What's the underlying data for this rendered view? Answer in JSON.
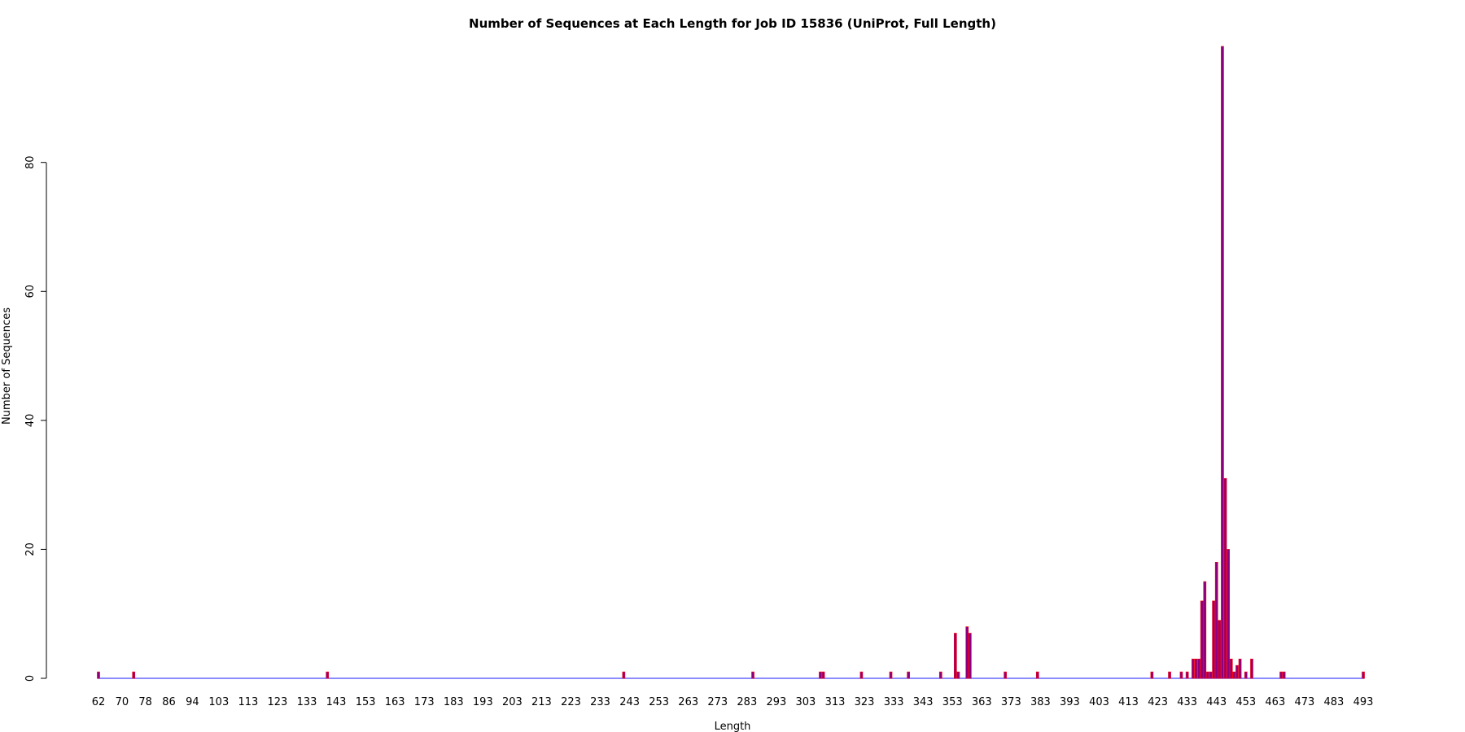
{
  "chart_data": {
    "type": "bar",
    "title": "Number of Sequences at Each Length for Job ID 15836 (UniProt, Full Length)",
    "xlabel": "Length",
    "ylabel": "Number of Sequences",
    "xlim": [
      62,
      494
    ],
    "ylim": [
      0,
      98
    ],
    "y_ticks": [
      0,
      20,
      40,
      60,
      80
    ],
    "x_tick_labels": [
      62,
      70,
      78,
      86,
      94,
      103,
      113,
      123,
      133,
      143,
      153,
      163,
      173,
      183,
      193,
      203,
      213,
      223,
      233,
      243,
      253,
      263,
      273,
      283,
      293,
      303,
      313,
      323,
      333,
      343,
      353,
      363,
      373,
      383,
      393,
      403,
      413,
      423,
      433,
      443,
      453,
      463,
      473,
      483,
      493
    ],
    "grid": false,
    "legend": "none",
    "bar_fill": "#8b0080",
    "bar_edge": "#ff0000",
    "baseline_color": "#6666ff",
    "points": [
      {
        "x": 62,
        "y": 1
      },
      {
        "x": 74,
        "y": 1
      },
      {
        "x": 140,
        "y": 1
      },
      {
        "x": 241,
        "y": 1
      },
      {
        "x": 285,
        "y": 1
      },
      {
        "x": 308,
        "y": 1
      },
      {
        "x": 309,
        "y": 1
      },
      {
        "x": 322,
        "y": 1
      },
      {
        "x": 332,
        "y": 1
      },
      {
        "x": 338,
        "y": 1
      },
      {
        "x": 349,
        "y": 1
      },
      {
        "x": 354,
        "y": 7
      },
      {
        "x": 355,
        "y": 1
      },
      {
        "x": 358,
        "y": 8
      },
      {
        "x": 359,
        "y": 7
      },
      {
        "x": 371,
        "y": 1
      },
      {
        "x": 382,
        "y": 1
      },
      {
        "x": 421,
        "y": 1
      },
      {
        "x": 427,
        "y": 1
      },
      {
        "x": 431,
        "y": 1
      },
      {
        "x": 433,
        "y": 1
      },
      {
        "x": 435,
        "y": 3
      },
      {
        "x": 436,
        "y": 3
      },
      {
        "x": 437,
        "y": 3
      },
      {
        "x": 438,
        "y": 12
      },
      {
        "x": 439,
        "y": 15
      },
      {
        "x": 440,
        "y": 1
      },
      {
        "x": 441,
        "y": 1
      },
      {
        "x": 442,
        "y": 12
      },
      {
        "x": 443,
        "y": 18
      },
      {
        "x": 444,
        "y": 9
      },
      {
        "x": 445,
        "y": 98
      },
      {
        "x": 446,
        "y": 31
      },
      {
        "x": 447,
        "y": 20
      },
      {
        "x": 448,
        "y": 3
      },
      {
        "x": 449,
        "y": 1
      },
      {
        "x": 450,
        "y": 2
      },
      {
        "x": 451,
        "y": 3
      },
      {
        "x": 453,
        "y": 1
      },
      {
        "x": 455,
        "y": 3
      },
      {
        "x": 465,
        "y": 1
      },
      {
        "x": 466,
        "y": 1
      },
      {
        "x": 493,
        "y": 1
      }
    ]
  }
}
